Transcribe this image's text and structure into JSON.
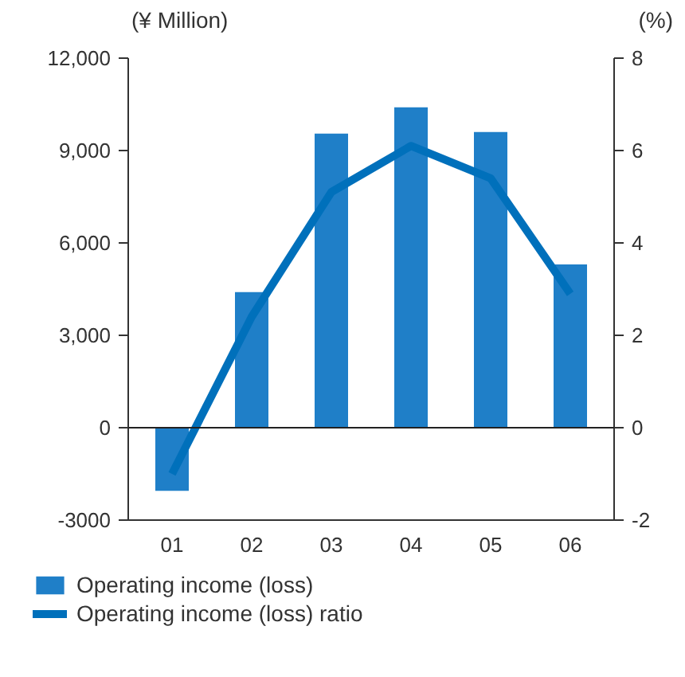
{
  "chart_data": {
    "type": "bar",
    "ylabel": "(¥ Million)",
    "y2label": "(%)",
    "categories": [
      "01",
      "02",
      "03",
      "04",
      "05",
      "06"
    ],
    "series": [
      {
        "name": "Operating income (loss)",
        "color": "#1f7fc8",
        "values": [
          -2050,
          4400,
          9550,
          10400,
          9600,
          5300
        ]
      },
      {
        "name": "Operating income (loss) ratio",
        "type": "line",
        "axis": "y2",
        "color": "#0070bb",
        "values": [
          -1.0,
          2.4,
          5.1,
          6.1,
          5.4,
          2.9
        ]
      }
    ],
    "ylim": [
      -3000,
      12000
    ],
    "yticks": [
      {
        "value": -3000,
        "label": "-3000"
      },
      0,
      {
        "value": 3000,
        "label": "3,000"
      },
      {
        "value": 6000,
        "label": "6,000"
      },
      {
        "value": 9000,
        "label": "9,000"
      },
      {
        "value": 12000,
        "label": "12,000"
      }
    ],
    "y2lim": [
      -2,
      8
    ],
    "y2ticks": [
      -2,
      0,
      2,
      4,
      6,
      8
    ],
    "ref_lines": [
      {
        "axis": "y",
        "value": 0,
        "color": "#222222"
      }
    ],
    "grid": false,
    "legend": "bottom"
  }
}
